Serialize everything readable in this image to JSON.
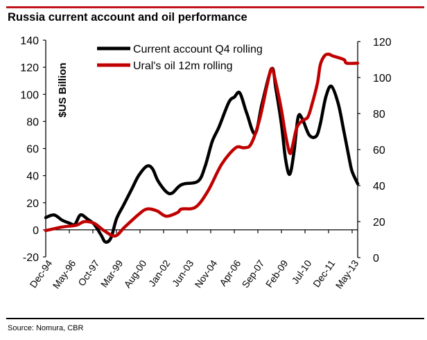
{
  "header": {
    "title": "Russia current account and oil performance"
  },
  "footer": {
    "source": "Source: Nomura, CBR"
  },
  "colors": {
    "accent": "#c0141c",
    "black_series": "#000000",
    "red_series": "#c00000"
  },
  "chart_data": {
    "type": "line",
    "title": "Russia current account and oil performance",
    "xlabel": "",
    "ylabel": "$US Billion",
    "ylabel_right": "",
    "x_unit": "months since Dec-94",
    "xlim": [
      0,
      225
    ],
    "ylim": [
      -20,
      140
    ],
    "ylim_right": [
      0,
      120
    ],
    "yticks": [
      "140",
      "120",
      "100",
      "80",
      "60",
      "40",
      "20",
      "0",
      "-20"
    ],
    "yticks_right": [
      "120",
      "100",
      "80",
      "60",
      "40",
      "20",
      "0"
    ],
    "x_tick_labels": [
      "Dec-94",
      "May-96",
      "Oct-97",
      "Mar-99",
      "Aug-00",
      "Jan-02",
      "Jun-03",
      "Nov-04",
      "Apr-06",
      "Sep-07",
      "Feb-09",
      "Jul-10",
      "Dec-11",
      "May-13"
    ],
    "legend_position": "top-center",
    "grid": false,
    "series": [
      {
        "name": "Current account Q4 rolling",
        "axis": "left",
        "color": "#000000",
        "x": [
          0,
          6,
          12,
          17,
          21,
          25,
          30,
          35,
          40,
          43,
          47,
          51,
          56,
          62,
          67,
          73,
          77,
          81,
          87,
          91,
          96,
          100,
          110,
          115,
          120,
          125,
          132,
          136,
          140,
          145,
          151,
          156,
          163,
          166,
          170,
          173,
          176,
          179,
          182,
          185,
          190,
          195,
          198,
          202,
          206,
          211,
          215,
          219,
          221,
          225
        ],
        "values": [
          9,
          11,
          7,
          5,
          4,
          11,
          8,
          4,
          -4,
          -9,
          -6,
          8,
          18,
          30,
          40,
          47,
          45,
          36,
          28,
          27,
          32,
          34,
          36,
          47,
          65,
          76,
          94,
          98,
          101,
          86,
          71,
          93,
          119,
          104,
          78,
          52,
          41,
          57,
          83,
          82,
          70,
          69,
          78,
          98,
          106,
          93,
          73,
          52,
          43,
          34
        ]
      },
      {
        "name": "Ural's oil 12m rolling",
        "axis": "right",
        "color": "#c00000",
        "x": [
          0,
          12,
          22,
          28,
          35,
          42,
          50,
          57,
          67,
          73,
          80,
          87,
          95,
          98,
          108,
          117,
          127,
          137,
          143,
          148,
          154,
          160,
          163,
          166,
          170,
          173,
          176,
          178,
          181,
          185,
          189,
          192,
          196,
          198,
          201,
          204,
          207,
          215,
          217,
          225
        ],
        "values": [
          15,
          17,
          18,
          20,
          19,
          15,
          12,
          17,
          24,
          27,
          26,
          23,
          25,
          27,
          28,
          37,
          52,
          61,
          61,
          63,
          76,
          97,
          105,
          97,
          82,
          68,
          58,
          62,
          72,
          76,
          78,
          85,
          97,
          107,
          112,
          113,
          112,
          110,
          108,
          108
        ]
      }
    ]
  }
}
